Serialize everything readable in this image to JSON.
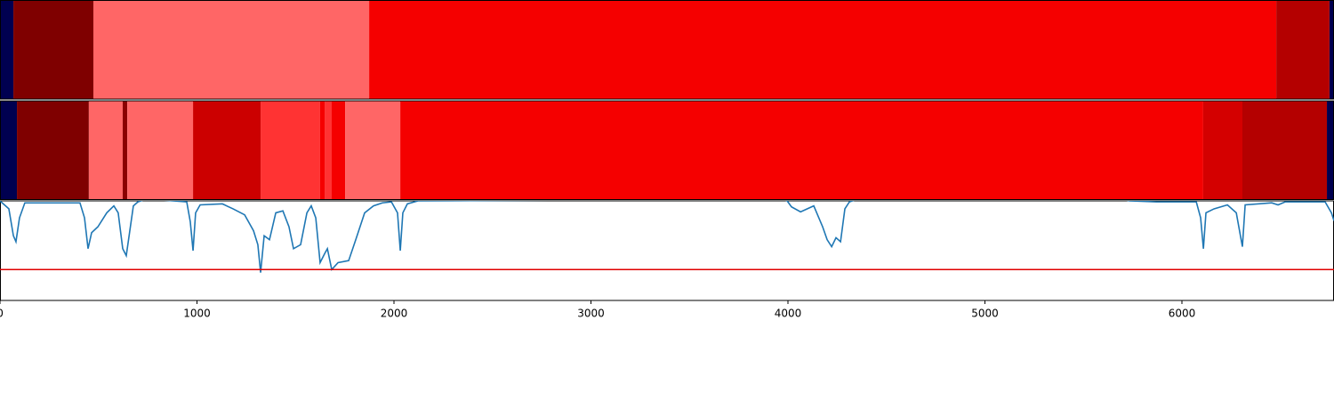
{
  "chart_data": {
    "type": "line",
    "xlim": [
      0,
      6772
    ],
    "xticks": [
      0,
      1000,
      2000,
      3000,
      4000,
      5000,
      6000
    ],
    "ylim": [
      0,
      1
    ],
    "threshold": {
      "value": 0.31,
      "color": "#e00000"
    },
    "segment_rows": [
      {
        "edges": [
          0,
          68,
          474,
          1874,
          6479,
          6749,
          6772
        ],
        "colors": [
          "#000050",
          "#7f0000",
          "#ff6666",
          "#f50000",
          "#b40000",
          "#000050"
        ]
      },
      {
        "edges": [
          0,
          86,
          451,
          623,
          646,
          980,
          1323,
          1625,
          1648,
          1684,
          1752,
          2032,
          6108,
          6307,
          6736,
          6772
        ],
        "colors": [
          "#000050",
          "#7f0000",
          "#ff6666",
          "#8a0000",
          "#ff6666",
          "#cc0000",
          "#ff3333",
          "#f50000",
          "#ff3333",
          "#f50000",
          "#ff6666",
          "#f50000",
          "#d40000",
          "#b40000",
          "#000050"
        ]
      }
    ],
    "series": [
      {
        "color": "#1f77b4",
        "x": [
          0,
          45,
          68,
          81,
          99,
          126,
          406,
          429,
          447,
          465,
          497,
          542,
          578,
          600,
          623,
          641,
          659,
          677,
          700,
          745,
          948,
          966,
          980,
          993,
          1016,
          1129,
          1183,
          1242,
          1287,
          1309,
          1323,
          1341,
          1368,
          1400,
          1436,
          1467,
          1490,
          1526,
          1558,
          1580,
          1603,
          1625,
          1648,
          1662,
          1684,
          1716,
          1770,
          1806,
          1851,
          1896,
          1941,
          1987,
          2018,
          2032,
          2045,
          2068,
          2122,
          3973,
          3996,
          4018,
          4064,
          4131,
          4176,
          4199,
          4222,
          4244,
          4267,
          4289,
          4312,
          4357,
          5689,
          5734,
          5870,
          6073,
          6095,
          6109,
          6122,
          6163,
          6231,
          6276,
          6307,
          6321,
          6456,
          6488,
          6524,
          6727,
          6759,
          6772
        ],
        "values": [
          1.0,
          0.92,
          0.65,
          0.59,
          0.83,
          0.98,
          0.98,
          0.83,
          0.52,
          0.68,
          0.74,
          0.88,
          0.95,
          0.88,
          0.52,
          0.45,
          0.7,
          0.95,
          0.99,
          1.02,
          0.99,
          0.79,
          0.5,
          0.88,
          0.96,
          0.97,
          0.92,
          0.86,
          0.7,
          0.56,
          0.28,
          0.65,
          0.61,
          0.88,
          0.9,
          0.74,
          0.52,
          0.56,
          0.88,
          0.95,
          0.83,
          0.38,
          0.47,
          0.52,
          0.31,
          0.38,
          0.4,
          0.61,
          0.88,
          0.95,
          0.98,
          0.99,
          0.88,
          0.5,
          0.88,
          0.97,
          1.0,
          1.02,
          1.0,
          0.94,
          0.89,
          0.95,
          0.74,
          0.61,
          0.54,
          0.63,
          0.59,
          0.92,
          0.99,
          1.02,
          1.02,
          1.0,
          0.99,
          0.99,
          0.83,
          0.52,
          0.88,
          0.92,
          0.96,
          0.88,
          0.54,
          0.96,
          0.98,
          0.96,
          0.99,
          0.99,
          0.88,
          0.8
        ]
      }
    ]
  }
}
